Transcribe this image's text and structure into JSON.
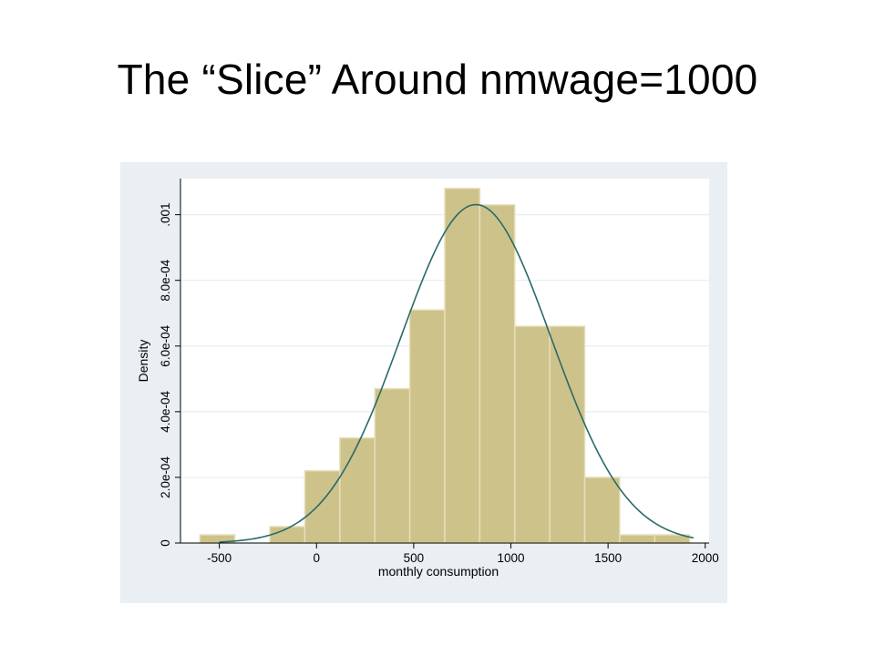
{
  "slide": {
    "title": "The “Slice” Around nmwage=1000"
  },
  "colors": {
    "panel_background": "#e9eff2",
    "plot_background": "#ffffff",
    "bar_fill": "#cdc28a",
    "bar_edge": "#e6dfb8",
    "curve": "#2a6a6a",
    "grid": "#e6eef1"
  },
  "chart_data": {
    "type": "bar",
    "xlabel": "monthly consumption",
    "ylabel": "Density",
    "xlim": [
      -700,
      2020
    ],
    "ylim": [
      0,
      0.00111
    ],
    "xticks": [
      {
        "value": -500,
        "label": "-500"
      },
      {
        "value": 0,
        "label": "0"
      },
      {
        "value": 500,
        "label": "500"
      },
      {
        "value": 1000,
        "label": "1000"
      },
      {
        "value": 1500,
        "label": "1500"
      },
      {
        "value": 2000,
        "label": "2000"
      }
    ],
    "yticks": [
      {
        "value": 0,
        "label": "0"
      },
      {
        "value": 0.0002,
        "label": "2.0e-04"
      },
      {
        "value": 0.0004,
        "label": "4.0e-04"
      },
      {
        "value": 0.0006,
        "label": "6.0e-04"
      },
      {
        "value": 0.0008,
        "label": "8.0e-04"
      },
      {
        "value": 0.001,
        "label": ".001"
      }
    ],
    "grid": true,
    "bins": [
      {
        "x0": -600,
        "x1": -420,
        "density": 2.5e-05
      },
      {
        "x0": -420,
        "x1": -240,
        "density": 0.0
      },
      {
        "x0": -240,
        "x1": -60,
        "density": 5e-05
      },
      {
        "x0": -60,
        "x1": 120,
        "density": 0.00022
      },
      {
        "x0": 120,
        "x1": 300,
        "density": 0.00032
      },
      {
        "x0": 300,
        "x1": 480,
        "density": 0.00047
      },
      {
        "x0": 480,
        "x1": 660,
        "density": 0.00071
      },
      {
        "x0": 660,
        "x1": 840,
        "density": 0.00108
      },
      {
        "x0": 840,
        "x1": 1020,
        "density": 0.00103
      },
      {
        "x0": 1020,
        "x1": 1200,
        "density": 0.00066
      },
      {
        "x0": 1200,
        "x1": 1380,
        "density": 0.00066
      },
      {
        "x0": 1380,
        "x1": 1560,
        "density": 0.0002
      },
      {
        "x0": 1560,
        "x1": 1740,
        "density": 2.5e-05
      },
      {
        "x0": 1740,
        "x1": 1920,
        "density": 2.5e-05
      }
    ],
    "normal_overlay": {
      "mean": 820,
      "sd": 387,
      "x_range": [
        -500,
        1940
      ]
    }
  }
}
